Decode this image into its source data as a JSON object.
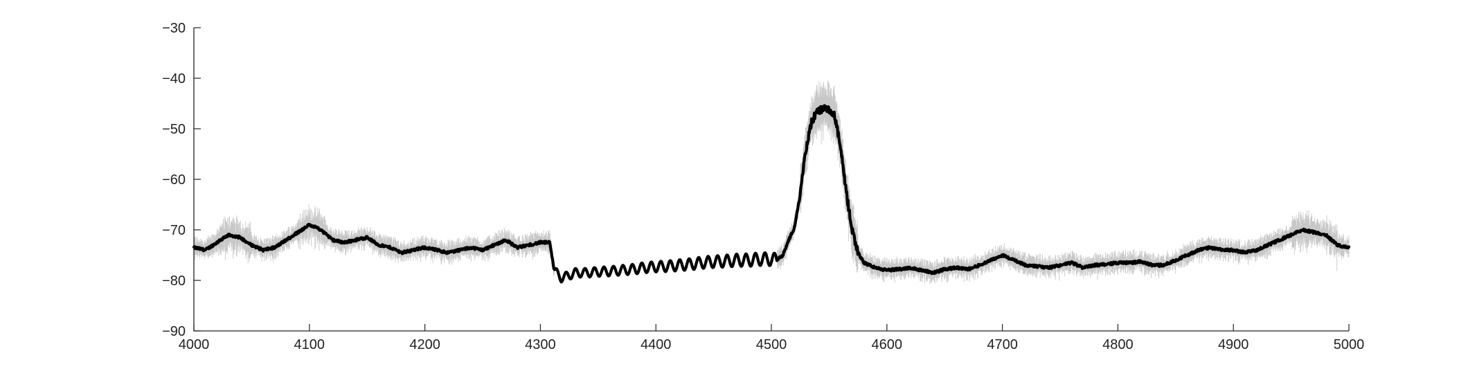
{
  "chart_data": {
    "type": "line",
    "title": "",
    "xlabel": "",
    "ylabel": "",
    "xlim": [
      4000,
      5000
    ],
    "ylim": [
      -90,
      -30
    ],
    "x_ticks": [
      "4000",
      "4100",
      "4200",
      "4300",
      "4400",
      "4500",
      "4600",
      "4700",
      "4800",
      "4900",
      "5000"
    ],
    "y_ticks": [
      "-30",
      "-40",
      "-50",
      "-60",
      "-70",
      "-80",
      "-90"
    ],
    "grid": false,
    "legend": "none",
    "colors": {
      "mean_line": "#000000",
      "spread": "#c8c8c8",
      "axis": "#222222"
    },
    "series": [
      {
        "style": "thick black line with light gray noisy spread",
        "x": [
          4000,
          4010,
          4020,
          4030,
          4040,
          4050,
          4060,
          4070,
          4080,
          4090,
          4100,
          4110,
          4120,
          4130,
          4140,
          4150,
          4160,
          4170,
          4180,
          4190,
          4200,
          4210,
          4220,
          4230,
          4240,
          4250,
          4260,
          4270,
          4280,
          4290,
          4300,
          4308,
          4312,
          4318,
          4325,
          4330,
          4340,
          4350,
          4360,
          4370,
          4380,
          4390,
          4400,
          4410,
          4420,
          4430,
          4440,
          4450,
          4460,
          4470,
          4480,
          4490,
          4500,
          4505,
          4510,
          4515,
          4520,
          4525,
          4530,
          4535,
          4540,
          4545,
          4550,
          4555,
          4560,
          4565,
          4570,
          4575,
          4580,
          4590,
          4600,
          4610,
          4620,
          4630,
          4640,
          4650,
          4660,
          4670,
          4680,
          4690,
          4700,
          4710,
          4720,
          4730,
          4740,
          4750,
          4760,
          4770,
          4780,
          4790,
          4800,
          4810,
          4820,
          4830,
          4840,
          4850,
          4860,
          4870,
          4880,
          4890,
          4900,
          4910,
          4920,
          4930,
          4940,
          4950,
          4960,
          4970,
          4980,
          4990,
          5000
        ],
        "y": [
          -73.5,
          -74.0,
          -72.5,
          -71.0,
          -71.5,
          -73.0,
          -74.0,
          -73.5,
          -72.0,
          -70.5,
          -69.0,
          -70.0,
          -72.0,
          -72.5,
          -72.0,
          -71.5,
          -73.0,
          -73.5,
          -74.5,
          -74.0,
          -73.5,
          -74.0,
          -74.5,
          -74.0,
          -73.5,
          -74.0,
          -73.0,
          -72.0,
          -73.5,
          -73.0,
          -72.5,
          -72.5,
          -78.0,
          -79.5,
          -79.0,
          -78.5,
          -78.5,
          -78.3,
          -78.2,
          -78.0,
          -77.8,
          -77.5,
          -77.3,
          -77.2,
          -77.0,
          -76.8,
          -76.5,
          -76.3,
          -76.2,
          -76.0,
          -76.0,
          -75.8,
          -75.8,
          -76.0,
          -75.0,
          -72.0,
          -69.5,
          -63.0,
          -54.0,
          -48.5,
          -46.5,
          -46.0,
          -46.5,
          -47.5,
          -54.0,
          -63.0,
          -70.0,
          -74.5,
          -76.5,
          -77.5,
          -78.0,
          -77.8,
          -77.5,
          -78.0,
          -78.5,
          -77.8,
          -77.5,
          -77.8,
          -77.0,
          -76.0,
          -75.0,
          -76.0,
          -77.0,
          -77.2,
          -77.5,
          -77.0,
          -76.5,
          -77.5,
          -77.0,
          -76.8,
          -76.5,
          -76.5,
          -76.3,
          -77.0,
          -77.0,
          -76.0,
          -75.0,
          -74.0,
          -73.5,
          -74.0,
          -74.0,
          -74.5,
          -74.0,
          -73.0,
          -72.0,
          -71.0,
          -70.0,
          -70.5,
          -71.0,
          -73.0,
          -73.5
        ]
      }
    ]
  }
}
